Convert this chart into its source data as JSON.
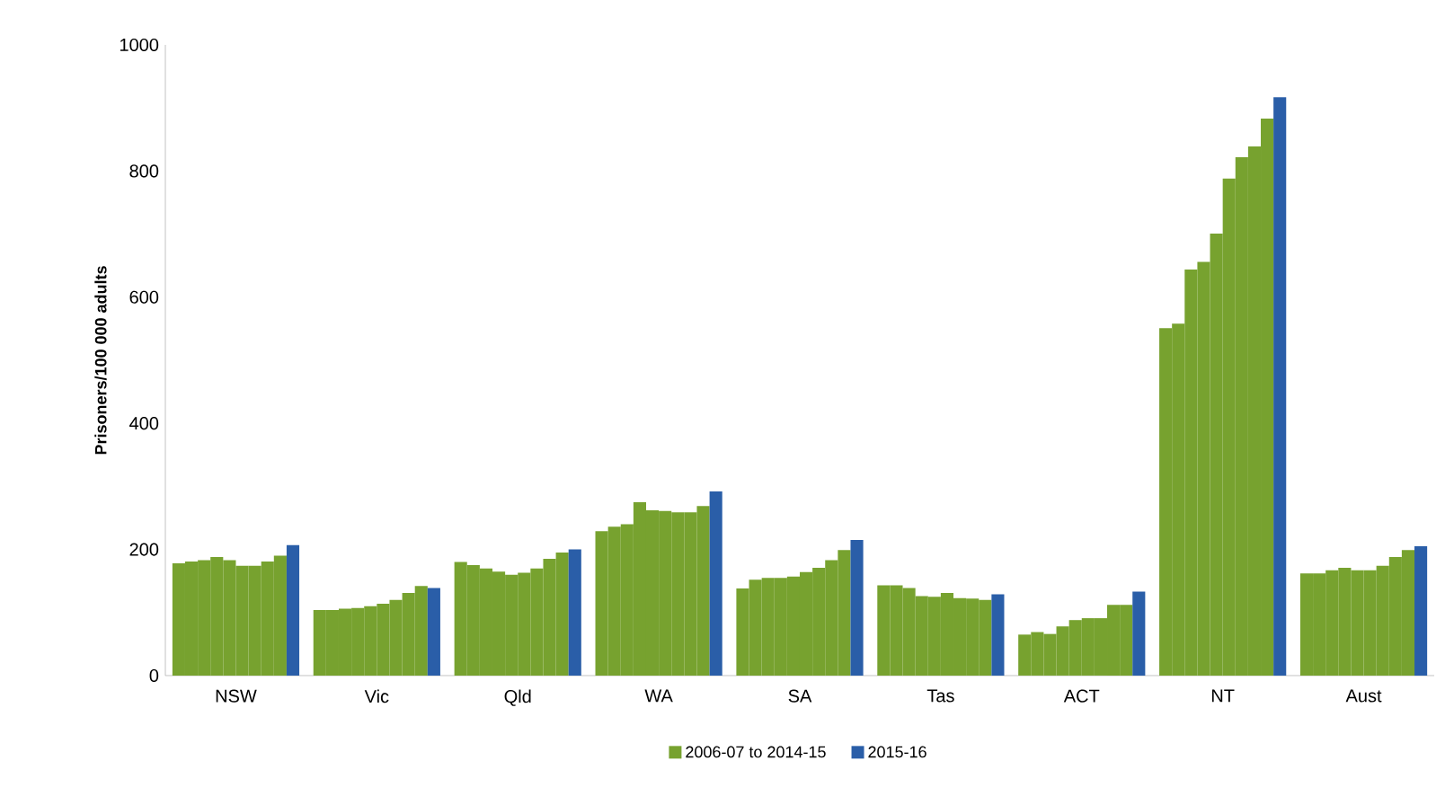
{
  "chart_data": {
    "type": "bar",
    "ylabel": "Prisoners/100 000 adults",
    "categories": [
      "NSW",
      "Vic",
      "Qld",
      "WA",
      "SA",
      "Tas",
      "ACT",
      "NT",
      "Aust"
    ],
    "ylim": [
      0,
      1000
    ],
    "yticks": [
      0,
      200,
      400,
      600,
      800,
      1000
    ],
    "grid": false,
    "legend": "bottom",
    "series": [
      {
        "name": "2006-07  to 2014-15",
        "color": "#77a22f",
        "values": [
          178,
          104,
          180,
          229,
          138,
          143,
          65,
          551,
          162
        ]
      },
      {
        "color": "#77a22f",
        "values": [
          181,
          104,
          175,
          236,
          152,
          143,
          69,
          558,
          162
        ]
      },
      {
        "color": "#77a22f",
        "values": [
          183,
          106,
          170,
          240,
          155,
          139,
          66,
          644,
          167
        ]
      },
      {
        "color": "#77a22f",
        "values": [
          188,
          107,
          165,
          275,
          155,
          126,
          78,
          656,
          171
        ]
      },
      {
        "color": "#77a22f",
        "values": [
          183,
          110,
          160,
          262,
          157,
          125,
          88,
          701,
          167
        ]
      },
      {
        "color": "#77a22f",
        "values": [
          174,
          114,
          163,
          261,
          164,
          131,
          91,
          788,
          167
        ]
      },
      {
        "color": "#77a22f",
        "values": [
          174,
          120,
          170,
          259,
          171,
          123,
          91,
          822,
          174
        ]
      },
      {
        "color": "#77a22f",
        "values": [
          181,
          131,
          185,
          259,
          183,
          122,
          112,
          839,
          188
        ]
      },
      {
        "color": "#77a22f",
        "values": [
          190,
          142,
          195,
          269,
          199,
          120,
          112,
          883,
          199
        ]
      },
      {
        "name": "2015-16",
        "color": "#2a5ea8",
        "values": [
          207,
          139,
          200,
          292,
          215,
          129,
          133,
          917,
          205
        ]
      }
    ]
  }
}
